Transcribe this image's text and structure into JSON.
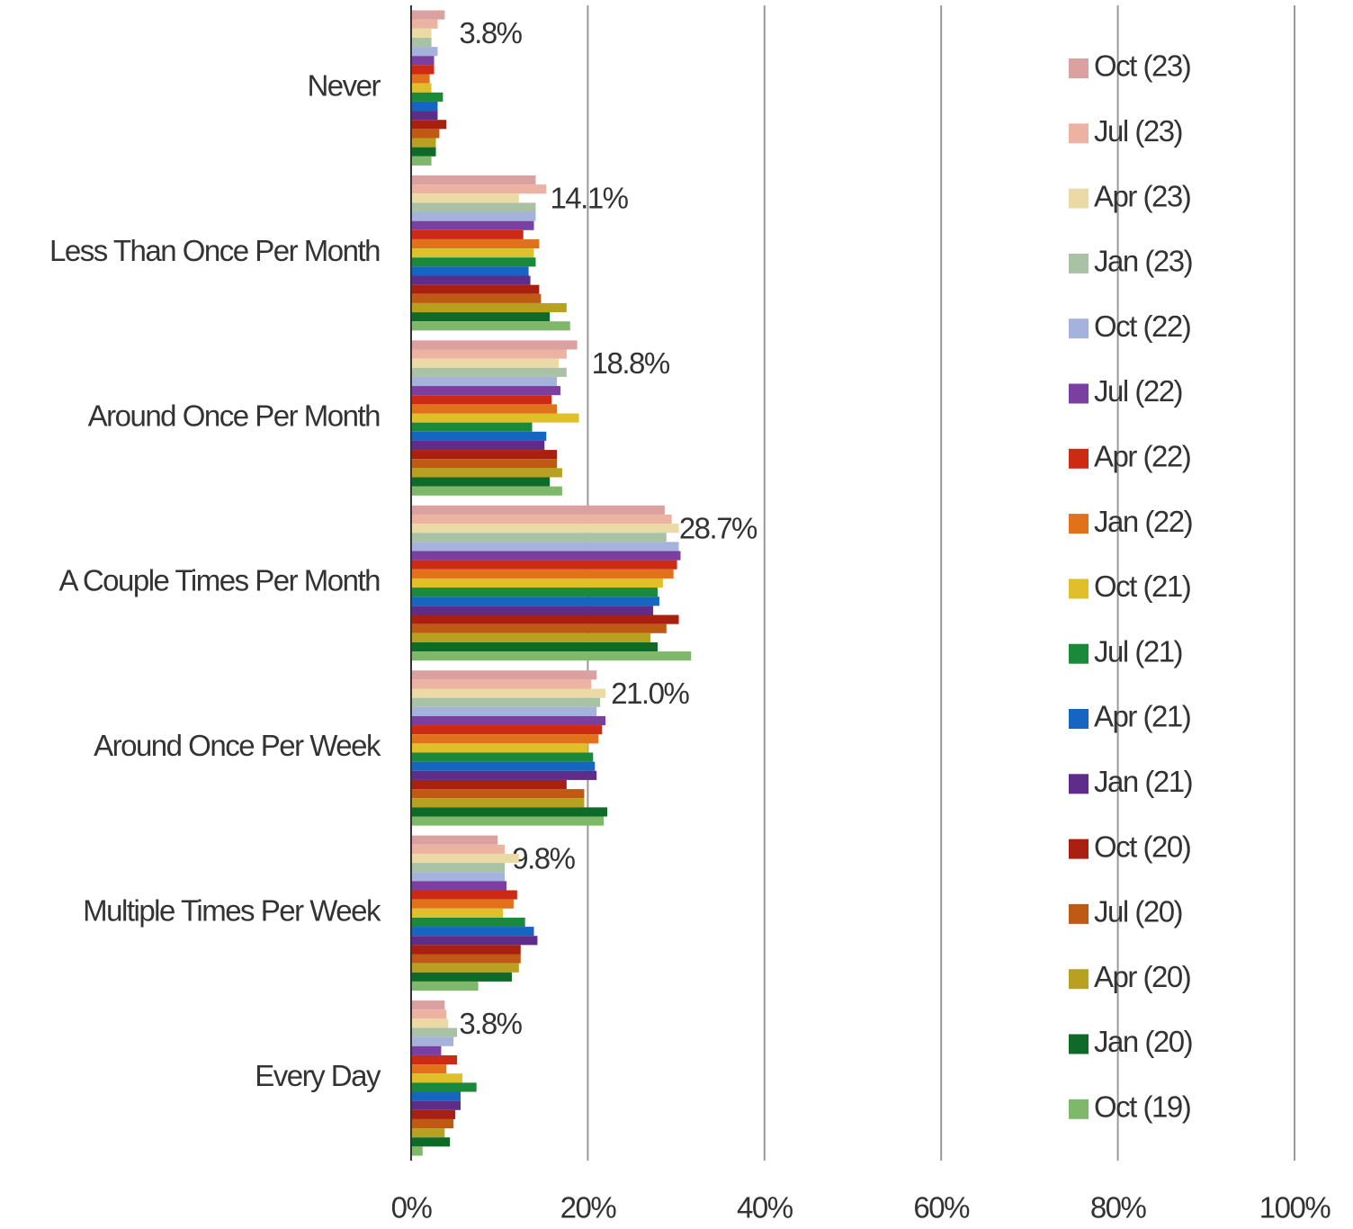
{
  "chart_data": {
    "type": "hbar",
    "categories": [
      "Never",
      "Less Than Once Per Month",
      "Around Once Per Month",
      "A Couple Times Per Month",
      "Around Once Per Week",
      "Multiple Times Per Week",
      "Every Day"
    ],
    "xlim": [
      0,
      100
    ],
    "xticks": [
      {
        "value": 0,
        "label": "0%"
      },
      {
        "value": 20,
        "label": "20%"
      },
      {
        "value": 40,
        "label": "40%"
      },
      {
        "value": 60,
        "label": "60%"
      },
      {
        "value": 80,
        "label": "80%"
      },
      {
        "value": 100,
        "label": "100%"
      }
    ],
    "grid": true,
    "legend": "right",
    "series": [
      {
        "name": "Oct (23)",
        "color": "#dba0a0",
        "values": [
          3.8,
          14.1,
          18.8,
          28.7,
          21.0,
          9.8,
          3.8
        ],
        "value_labels": [
          "3.8%",
          "14.1%",
          "18.8%",
          "28.7%",
          "21.0%",
          "9.8%",
          "3.8%"
        ]
      },
      {
        "name": "Jul (23)",
        "color": "#ecb3a3",
        "values": [
          3.0,
          15.3,
          17.6,
          29.5,
          20.4,
          10.6,
          4.0
        ]
      },
      {
        "name": "Apr (23)",
        "color": "#ecdaa6",
        "values": [
          2.3,
          12.2,
          16.7,
          30.3,
          22.0,
          12.2,
          4.2
        ]
      },
      {
        "name": "Jan (23)",
        "color": "#a9c2a6",
        "values": [
          2.3,
          14.1,
          17.6,
          28.9,
          21.4,
          10.6,
          5.2
        ]
      },
      {
        "name": "Oct (22)",
        "color": "#a5b3dc",
        "values": [
          3.0,
          14.1,
          16.5,
          30.3,
          21.0,
          10.6,
          4.8
        ]
      },
      {
        "name": "Jul (22)",
        "color": "#7a3fa0",
        "values": [
          2.6,
          13.9,
          16.9,
          30.5,
          22.0,
          10.8,
          3.4
        ]
      },
      {
        "name": "Apr (22)",
        "color": "#cc2a14",
        "values": [
          2.6,
          12.7,
          15.9,
          30.1,
          21.6,
          12.0,
          5.2
        ]
      },
      {
        "name": "Jan (22)",
        "color": "#e2711b",
        "values": [
          2.1,
          14.5,
          16.5,
          29.7,
          21.2,
          11.6,
          4.0
        ]
      },
      {
        "name": "Oct (21)",
        "color": "#e0c02a",
        "values": [
          2.3,
          13.9,
          19.0,
          28.5,
          20.0,
          10.4,
          5.8
        ]
      },
      {
        "name": "Jul (21)",
        "color": "#1a8a3a",
        "values": [
          3.6,
          14.1,
          13.7,
          27.9,
          20.6,
          12.9,
          7.4
        ]
      },
      {
        "name": "Apr (21)",
        "color": "#1566c0",
        "values": [
          3.0,
          13.3,
          15.3,
          28.1,
          20.8,
          13.9,
          5.6
        ]
      },
      {
        "name": "Jan (21)",
        "color": "#5e2d8a",
        "values": [
          3.0,
          13.5,
          15.1,
          27.4,
          21.0,
          14.3,
          5.6
        ]
      },
      {
        "name": "Oct (20)",
        "color": "#aa2010",
        "values": [
          4.0,
          14.5,
          16.5,
          30.3,
          17.6,
          12.4,
          5.0
        ]
      },
      {
        "name": "Jul (20)",
        "color": "#bf5a15",
        "values": [
          3.2,
          14.7,
          16.5,
          28.9,
          19.6,
          12.4,
          4.8
        ]
      },
      {
        "name": "Apr (20)",
        "color": "#b8a020",
        "values": [
          2.8,
          17.6,
          17.1,
          27.1,
          19.6,
          12.2,
          3.8
        ]
      },
      {
        "name": "Jan (20)",
        "color": "#0f6a2a",
        "values": [
          2.8,
          15.7,
          15.7,
          27.9,
          22.2,
          11.4,
          4.4
        ]
      },
      {
        "name": "Oct (19)",
        "color": "#7fb86a",
        "values": [
          2.3,
          18.0,
          17.1,
          31.7,
          21.8,
          7.6,
          1.3
        ]
      }
    ]
  }
}
